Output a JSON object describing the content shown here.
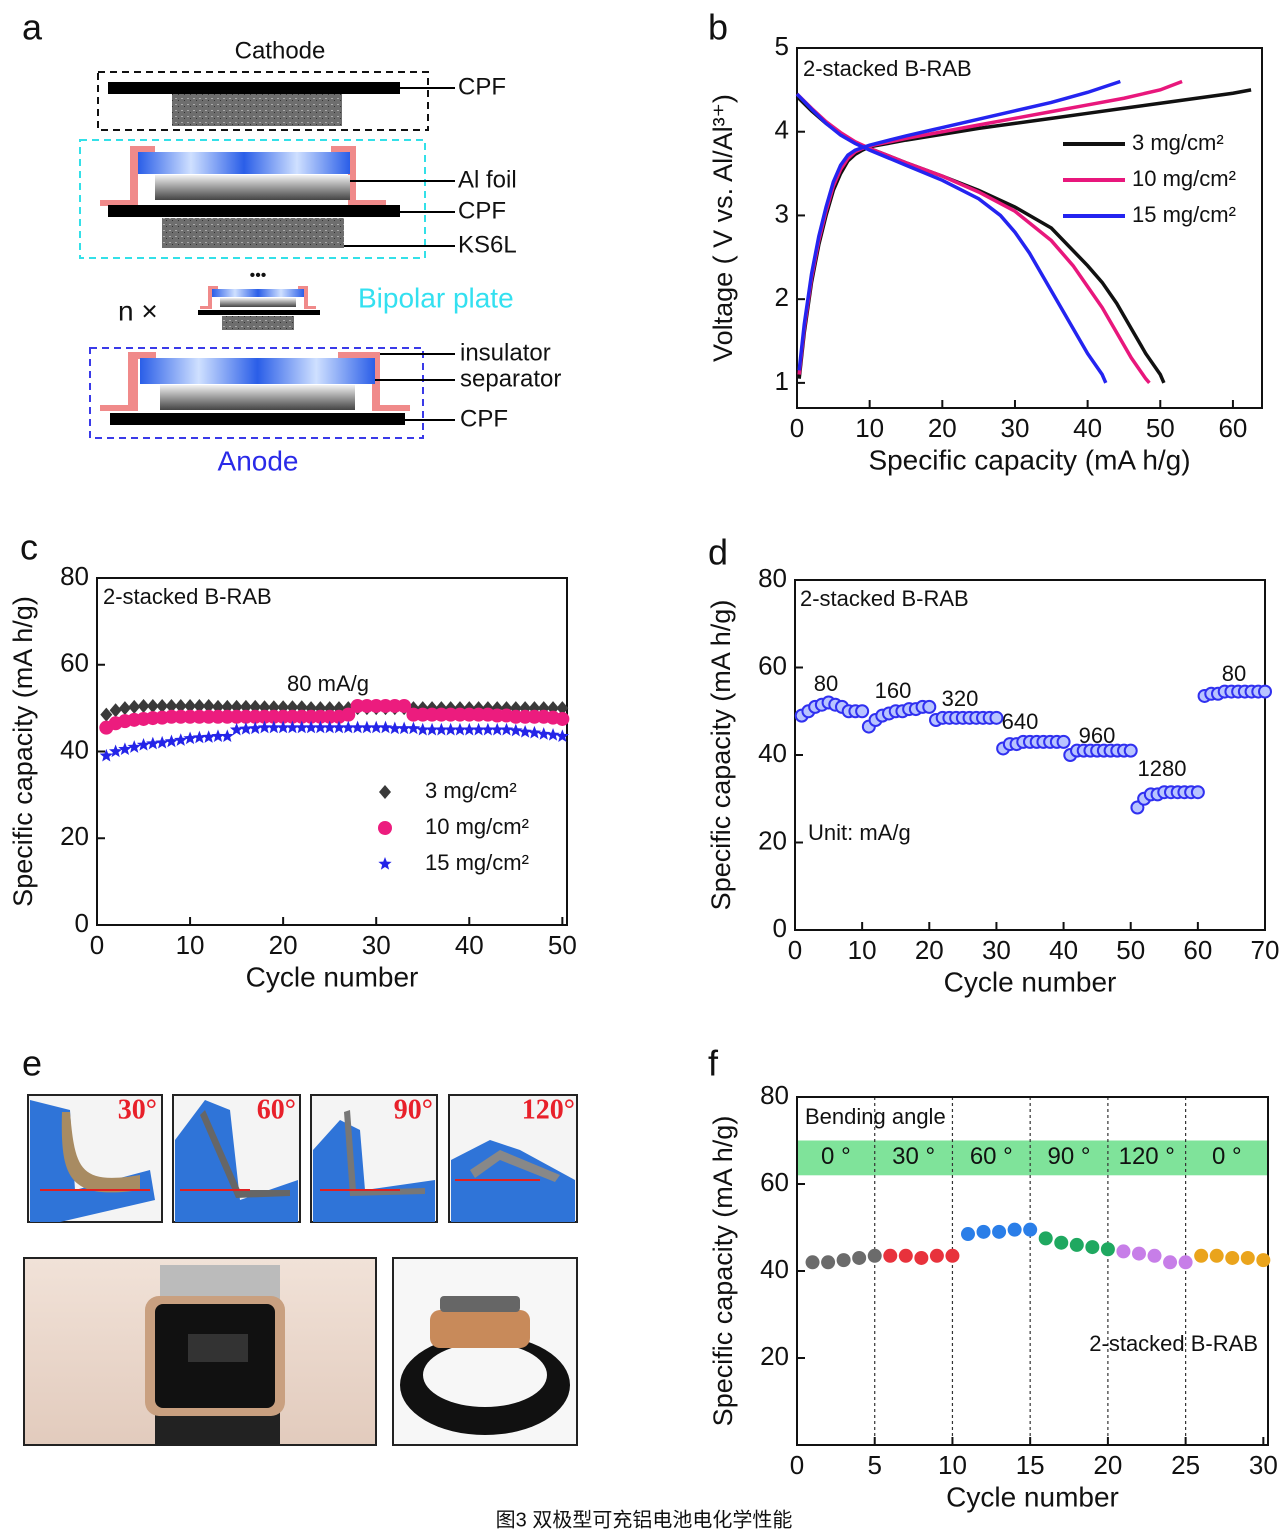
{
  "diagram": {
    "panel": "a",
    "cathode": "Cathode",
    "anode": "Anode",
    "bipolar_plate": "Bipolar plate",
    "repeat": "n ×",
    "ellipsis": "•••",
    "labels": [
      "CPF",
      "Al foil",
      "CPF",
      "KS6L",
      "insulator",
      "separator",
      "CPF"
    ]
  },
  "photos": {
    "panel": "e",
    "angles": [
      "30°",
      "60°",
      "90°",
      "120°"
    ]
  },
  "caption": "图3 双极型可充铝电池电化学性能",
  "chart_data": [
    {
      "type": "line",
      "panel": "b",
      "x_label": "Specific capacity (mA h/g)",
      "y_label": "Voltage ( V vs. Al/Al³⁺)",
      "annotations": [
        "2-stacked B-RAB"
      ],
      "xlim": [
        0,
        64
      ],
      "ylim": [
        0.7,
        5
      ],
      "xticks": [
        0,
        10,
        20,
        30,
        40,
        50,
        60
      ],
      "yticks": [
        1,
        2,
        3,
        4,
        5
      ],
      "series": [
        {
          "name": "3 mg/cm²",
          "color": "#111111",
          "x": [
            0.3,
            1,
            2,
            3,
            4,
            5,
            6,
            7,
            8,
            9,
            10,
            15,
            20,
            25,
            30,
            35,
            40,
            45,
            50,
            55,
            60,
            62.5,
            null,
            0,
            2,
            4,
            6,
            8,
            10,
            15,
            20,
            25,
            30,
            35,
            40,
            42,
            44,
            46,
            48,
            50,
            50.5
          ],
          "values": [
            1.05,
            1.6,
            2.2,
            2.65,
            3.0,
            3.3,
            3.5,
            3.65,
            3.73,
            3.78,
            3.82,
            3.9,
            3.97,
            4.04,
            4.1,
            4.16,
            4.22,
            4.28,
            4.34,
            4.4,
            4.46,
            4.5,
            null,
            4.42,
            4.25,
            4.1,
            3.97,
            3.87,
            3.8,
            3.63,
            3.47,
            3.3,
            3.1,
            2.85,
            2.4,
            2.2,
            1.95,
            1.65,
            1.35,
            1.1,
            1.0
          ]
        },
        {
          "name": "10 mg/cm²",
          "color": "#e8177c",
          "x": [
            0.3,
            1,
            2,
            3,
            4,
            5,
            6,
            7,
            8,
            9,
            10,
            15,
            20,
            25,
            30,
            35,
            40,
            45,
            50,
            53,
            null,
            0,
            2,
            4,
            6,
            8,
            10,
            15,
            20,
            25,
            30,
            35,
            38,
            40,
            42,
            44,
            46,
            48,
            48.5
          ],
          "values": [
            1.1,
            1.65,
            2.25,
            2.7,
            3.05,
            3.35,
            3.55,
            3.68,
            3.76,
            3.8,
            3.83,
            3.92,
            4.0,
            4.08,
            4.16,
            4.24,
            4.32,
            4.4,
            4.5,
            4.6,
            null,
            4.45,
            4.28,
            4.12,
            3.99,
            3.88,
            3.8,
            3.63,
            3.47,
            3.28,
            3.05,
            2.7,
            2.4,
            2.15,
            1.9,
            1.6,
            1.3,
            1.05,
            1.0
          ]
        },
        {
          "name": "15 mg/cm²",
          "color": "#2424f0",
          "x": [
            0.3,
            1,
            2,
            3,
            4,
            5,
            6,
            7,
            8,
            9,
            10,
            15,
            20,
            25,
            30,
            35,
            40,
            44.5,
            null,
            0,
            2,
            4,
            6,
            8,
            10,
            15,
            20,
            25,
            28,
            30,
            32,
            34,
            36,
            38,
            40,
            42,
            42.5
          ],
          "values": [
            1.15,
            1.7,
            2.3,
            2.75,
            3.1,
            3.4,
            3.6,
            3.72,
            3.78,
            3.81,
            3.84,
            3.95,
            4.05,
            4.15,
            4.25,
            4.35,
            4.47,
            4.6,
            null,
            4.45,
            4.27,
            4.1,
            3.96,
            3.86,
            3.78,
            3.6,
            3.42,
            3.2,
            3.0,
            2.8,
            2.55,
            2.25,
            1.95,
            1.65,
            1.35,
            1.1,
            1.0
          ]
        }
      ]
    },
    {
      "type": "scatter",
      "panel": "c",
      "x_label": "Cycle number",
      "y_label": "Specific capacity (mA h/g)",
      "annotations": [
        "2-stacked B-RAB",
        "80 mA/g"
      ],
      "xlim": [
        0,
        50.5
      ],
      "ylim": [
        0,
        80
      ],
      "xticks": [
        0,
        10,
        20,
        30,
        40,
        50
      ],
      "yticks": [
        0,
        20,
        40,
        60,
        80
      ],
      "x": [
        1,
        2,
        3,
        4,
        5,
        6,
        7,
        8,
        9,
        10,
        11,
        12,
        13,
        14,
        15,
        16,
        17,
        18,
        19,
        20,
        21,
        22,
        23,
        24,
        25,
        26,
        27,
        28,
        29,
        30,
        31,
        32,
        33,
        34,
        35,
        36,
        37,
        38,
        39,
        40,
        41,
        42,
        43,
        44,
        45,
        46,
        47,
        48,
        49,
        50
      ],
      "series": [
        {
          "name": "3  mg/cm²",
          "color": "#3a3a3a",
          "marker": "diamond",
          "values": [
            48.5,
            49.5,
            50,
            50.3,
            50.5,
            50.5,
            50.5,
            50.5,
            50.5,
            50.5,
            50.5,
            50.5,
            50.3,
            50.3,
            50.3,
            50.3,
            50.3,
            50.2,
            50.2,
            50.2,
            50.2,
            50.2,
            50,
            50,
            50,
            50,
            50,
            50,
            50,
            50,
            50,
            50,
            50,
            50,
            50,
            50,
            50,
            50,
            50,
            50,
            50,
            50,
            50,
            50,
            50,
            50,
            50,
            50,
            50,
            50
          ]
        },
        {
          "name": "10 mg/cm²",
          "color": "#ec1c7e",
          "marker": "circle",
          "values": [
            45.5,
            46.5,
            47,
            47.3,
            47.5,
            47.7,
            47.8,
            48,
            48,
            48,
            48,
            48,
            48,
            48,
            48,
            48,
            48,
            48,
            48,
            48,
            48,
            48,
            48,
            48,
            48,
            48,
            48.5,
            50.5,
            50.5,
            50.5,
            50.5,
            50.5,
            50.5,
            48.5,
            48.5,
            48.5,
            48.5,
            48.5,
            48.5,
            48.5,
            48.5,
            48.5,
            48.3,
            48.3,
            48,
            48,
            48,
            48,
            47.8,
            47.5
          ]
        },
        {
          "name": "15 mg/cm²",
          "color": "#2424e8",
          "marker": "star",
          "values": [
            39,
            40,
            40.5,
            41,
            41.5,
            41.8,
            42,
            42.3,
            42.6,
            43,
            43.2,
            43.3,
            43.5,
            43.5,
            45,
            45.2,
            45.3,
            45.5,
            45.5,
            45.5,
            45.5,
            45.5,
            45.5,
            45.5,
            45.5,
            45.5,
            45.5,
            45.5,
            45.5,
            45.5,
            45.5,
            45.3,
            45.3,
            45.3,
            45,
            45,
            45,
            45,
            45,
            45,
            45,
            45,
            45,
            45,
            44.8,
            44.5,
            44.3,
            44,
            43.8,
            43.5
          ]
        }
      ]
    },
    {
      "type": "scatter",
      "panel": "d",
      "x_label": "Cycle number",
      "y_label": "Specific capacity (mA h/g)",
      "annotations": [
        "2-stacked B-RAB",
        "Unit: mA/g",
        "80",
        "160",
        "320",
        "640",
        "960",
        "1280",
        "80"
      ],
      "xlim": [
        0,
        70
      ],
      "ylim": [
        0,
        80
      ],
      "xticks": [
        0,
        10,
        20,
        30,
        40,
        50,
        60,
        70
      ],
      "yticks": [
        0,
        20,
        40,
        60,
        80
      ],
      "color": "#3030f0",
      "marker": "ring",
      "x": [
        1,
        2,
        3,
        4,
        5,
        6,
        7,
        8,
        9,
        10,
        11,
        12,
        13,
        14,
        15,
        16,
        17,
        18,
        19,
        20,
        21,
        22,
        23,
        24,
        25,
        26,
        27,
        28,
        29,
        30,
        31,
        32,
        33,
        34,
        35,
        36,
        37,
        38,
        39,
        40,
        41,
        42,
        43,
        44,
        45,
        46,
        47,
        48,
        49,
        50,
        51,
        52,
        53,
        54,
        55,
        56,
        57,
        58,
        59,
        60,
        61,
        62,
        63,
        64,
        65,
        66,
        67,
        68,
        69,
        70
      ],
      "values": [
        49,
        50,
        51,
        51.5,
        52,
        51.5,
        51,
        50,
        50,
        50,
        46.5,
        48,
        49,
        49.5,
        50,
        50,
        50.5,
        50.5,
        51,
        51,
        48,
        48.5,
        48.5,
        48.5,
        48.5,
        48.5,
        48.5,
        48.5,
        48.5,
        48.5,
        41.5,
        42.5,
        42.5,
        43,
        43,
        43,
        43,
        43,
        43,
        43,
        40,
        41,
        41,
        41,
        41,
        41,
        41,
        41,
        41,
        41,
        28,
        30,
        31,
        31,
        31.5,
        31.5,
        31.5,
        31.5,
        31.5,
        31.5,
        53.5,
        54,
        54,
        54.5,
        54.5,
        54.5,
        54.5,
        54.5,
        54.5,
        54.5
      ]
    },
    {
      "type": "scatter",
      "panel": "f",
      "x_label": "Cycle number",
      "y_label": "Specific capacity (mA h/g)",
      "annotations": [
        "Bending angle",
        "2-stacked B-RAB"
      ],
      "xlim": [
        0,
        30.3
      ],
      "ylim": [
        0,
        80
      ],
      "xticks": [
        0,
        5,
        10,
        15,
        20,
        25,
        30
      ],
      "yticks": [
        20,
        40,
        60,
        80
      ],
      "band": [
        62,
        70
      ],
      "band_color": "#7fe39a",
      "dividers": [
        5,
        10,
        15,
        20,
        25
      ],
      "marker": "circle",
      "series": [
        {
          "name": "0 °",
          "color": "#6b6b6b",
          "x": [
            1,
            2,
            3,
            4,
            5
          ],
          "values": [
            42,
            42,
            42.5,
            43,
            43.5
          ]
        },
        {
          "name": "30 °",
          "color": "#e8323c",
          "x": [
            6,
            7,
            8,
            9,
            10
          ],
          "values": [
            43.5,
            43.5,
            43,
            43.5,
            43.5
          ]
        },
        {
          "name": "60 °",
          "color": "#2a7ee8",
          "x": [
            11,
            12,
            13,
            14,
            15
          ],
          "values": [
            48.5,
            49,
            49,
            49.5,
            49.5
          ]
        },
        {
          "name": "90 °",
          "color": "#1fa860",
          "x": [
            16,
            17,
            18,
            19,
            20
          ],
          "values": [
            47.5,
            46.5,
            46,
            45.5,
            45
          ]
        },
        {
          "name": "120 °",
          "color": "#c77ee8",
          "x": [
            21,
            22,
            23,
            24,
            25
          ],
          "values": [
            44.5,
            44,
            43.5,
            42,
            42
          ]
        },
        {
          "name": "0 °",
          "color": "#eaa41c",
          "x": [
            26,
            27,
            28,
            29,
            30
          ],
          "values": [
            43.5,
            43.5,
            43,
            43,
            42.5
          ]
        }
      ]
    }
  ]
}
